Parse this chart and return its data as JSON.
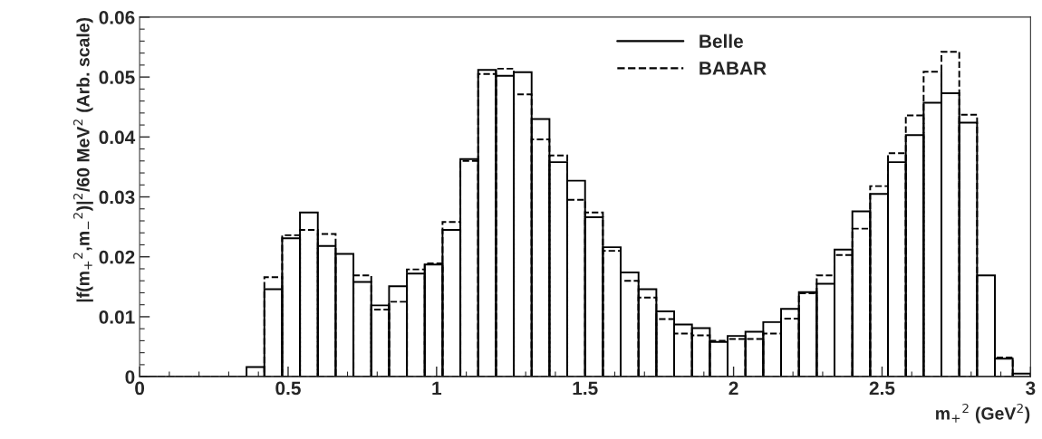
{
  "chart_data": {
    "type": "histogram",
    "xlabel": "m$_{+}$$^{2}$ (GeV$^{2}$)",
    "ylabel": "|f(m$_{+}$$^{2}$,m$_{−}$$^{2}$)|$^{2}$/60 MeV$^{2}$ (Arb. scale)",
    "bins": [
      0,
      0.06,
      0.12,
      0.18,
      0.24,
      0.3,
      0.36,
      0.42,
      0.48,
      0.54,
      0.6,
      0.66,
      0.72,
      0.78,
      0.84,
      0.9,
      0.96,
      1.02,
      1.08,
      1.14,
      1.2,
      1.26,
      1.32,
      1.38,
      1.44,
      1.5,
      1.56,
      1.62,
      1.68,
      1.74,
      1.8,
      1.86,
      1.92,
      1.98,
      2.04,
      2.1,
      2.16,
      2.22,
      2.28,
      2.34,
      2.4,
      2.46,
      2.52,
      2.58,
      2.64,
      2.7,
      2.76,
      2.82,
      2.88,
      2.94,
      3
    ],
    "series": [
      {
        "name": "Belle",
        "color": "#000000",
        "line_style": "solid",
        "values": [
          0,
          0,
          0,
          0,
          0,
          0,
          0.0016,
          0.0146,
          0.0231,
          0.0274,
          0.0218,
          0.0205,
          0.0158,
          0.0119,
          0.0151,
          0.0172,
          0.0187,
          0.0245,
          0.0363,
          0.0512,
          0.0502,
          0.0508,
          0.043,
          0.0358,
          0.0327,
          0.0266,
          0.0216,
          0.0174,
          0.0146,
          0.0109,
          0.0087,
          0.0081,
          0.0058,
          0.0068,
          0.0075,
          0.0091,
          0.0113,
          0.0141,
          0.0155,
          0.0212,
          0.0276,
          0.0305,
          0.0358,
          0.0403,
          0.0457,
          0.0473,
          0.0424,
          0.0169,
          0.003,
          0.0005
        ]
      },
      {
        "name": "BABAR",
        "color": "#000000",
        "line_style": "dashed",
        "values": [
          0,
          0,
          0,
          0,
          0,
          0,
          null,
          0.0166,
          0.0236,
          0.0245,
          0.0238,
          null,
          0.0169,
          0.0112,
          0.0125,
          0.0179,
          0.0189,
          0.0258,
          0.036,
          0.0505,
          0.0514,
          0.0471,
          0.0396,
          0.0369,
          0.0295,
          0.0274,
          0.021,
          0.016,
          0.0132,
          0.0096,
          0.0072,
          0.0069,
          0.006,
          0.0063,
          0.0063,
          0.0072,
          0.0097,
          0.0139,
          0.0169,
          0.0203,
          0.0247,
          0.0318,
          0.0373,
          0.0436,
          0.0509,
          0.0542,
          0.0437,
          null,
          0.0032,
          null
        ]
      }
    ],
    "xlim": [
      0,
      3
    ],
    "xticks": [
      0,
      0.5,
      1,
      1.5,
      2,
      2.5,
      3
    ],
    "ylim": [
      0,
      0.06
    ],
    "yticks": [
      0,
      0.01,
      0.02,
      0.03,
      0.04,
      0.05,
      0.06
    ],
    "grid": false,
    "legend": "top"
  }
}
